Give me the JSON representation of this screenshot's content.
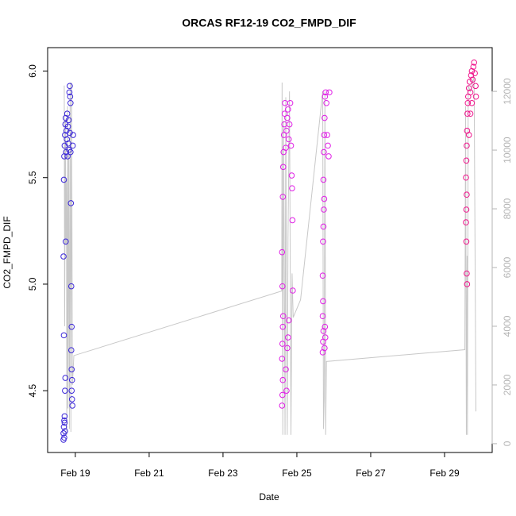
{
  "chart_data": {
    "type": "scatter",
    "title": "ORCAS RF12-19 CO2_FMPD_DIF",
    "x_label": "Date",
    "y_label": "CO2_FMPD_DIF",
    "xlim": [
      18.25,
      30.29
    ],
    "xticks": [
      {
        "value": 19,
        "label": "Feb 19"
      },
      {
        "value": 21,
        "label": "Feb 21"
      },
      {
        "value": 23,
        "label": "Feb 23"
      },
      {
        "value": 25,
        "label": "Feb 25"
      },
      {
        "value": 27,
        "label": "Feb 27"
      },
      {
        "value": 29,
        "label": "Feb 29"
      }
    ],
    "ylim": [
      4.21,
      6.11
    ],
    "yticks": [
      4.5,
      {
        "value": 5,
        "label": "5.0"
      },
      5.5,
      {
        "value": 6,
        "label": "6.0"
      }
    ],
    "y2lim": [
      -300,
      13490
    ],
    "y2ticks": [
      0,
      2000,
      4000,
      6000,
      8000,
      10000,
      12000
    ],
    "y2color": "#b4b4b4",
    "series": [
      {
        "type": "line",
        "axis": "y2",
        "color": "#c8c8c8",
        "x": [
          18.7,
          18.71,
          18.73,
          18.74,
          18.76,
          18.77,
          18.79,
          18.8,
          18.82,
          18.84,
          18.86,
          18.88,
          18.9,
          18.92,
          18.96,
          24.59,
          24.6,
          24.62,
          24.64,
          24.66,
          24.68,
          24.7,
          24.72,
          24.74,
          24.76,
          24.8,
          24.84,
          24.87,
          24.9,
          25.1,
          25.7,
          25.72,
          25.74,
          25.76,
          25.78,
          25.8,
          29.55,
          29.57,
          29.59,
          29.61,
          29.62,
          29.64,
          29.7,
          29.8,
          29.85
        ],
        "values": [
          12200,
          4000,
          11000,
          6800,
          9000,
          300,
          11500,
          1200,
          10000,
          500,
          12300,
          400,
          12300,
          2000,
          3000,
          5200,
          12300,
          300,
          11000,
          6000,
          300,
          11800,
          4500,
          300,
          7000,
          12000,
          300,
          5800,
          4300,
          4900,
          12000,
          500,
          1500,
          12000,
          300,
          2800,
          3200,
          11500,
          300,
          6400,
          300,
          12200,
          12000,
          12500,
          1100
        ]
      },
      {
        "type": "scatter",
        "color": "#3c28d8",
        "x": [
          18.68,
          18.68,
          18.69,
          18.7,
          18.71,
          18.7,
          18.72,
          18.71,
          18.69,
          18.68,
          18.69,
          18.7,
          18.71,
          18.72,
          18.73,
          18.74,
          18.75,
          18.76,
          18.77,
          18.78,
          18.79,
          18.8,
          18.81,
          18.82,
          18.83,
          18.84,
          18.85,
          18.86,
          18.87,
          18.85,
          18.87,
          18.88,
          18.89,
          18.9,
          18.89,
          18.9,
          18.91,
          18.9,
          18.91,
          18.92,
          18.93,
          18.94,
          18.72,
          18.73,
          18.74
        ],
        "values": [
          4.27,
          4.3,
          4.33,
          4.36,
          4.38,
          4.28,
          4.31,
          4.35,
          4.76,
          5.13,
          5.49,
          5.6,
          5.65,
          5.7,
          5.75,
          5.78,
          5.62,
          5.72,
          5.68,
          5.8,
          5.6,
          5.74,
          5.66,
          5.77,
          5.63,
          5.9,
          5.93,
          5.88,
          5.85,
          5.71,
          5.62,
          5.38,
          4.99,
          4.8,
          4.69,
          4.6,
          4.55,
          4.5,
          4.46,
          4.43,
          5.65,
          5.7,
          4.5,
          4.56,
          5.2
        ]
      },
      {
        "type": "scatter",
        "color": "#e01ee6",
        "x": [
          24.6,
          24.61,
          24.62,
          24.6,
          24.61,
          24.62,
          24.63,
          24.61,
          24.6,
          24.62,
          24.63,
          24.64,
          24.65,
          24.66,
          24.67,
          24.68,
          24.7,
          24.72,
          24.74,
          24.76,
          24.78,
          24.8,
          24.82,
          24.84,
          24.86,
          24.87,
          24.88,
          24.89,
          24.7,
          24.72,
          24.74,
          24.76,
          24.78,
          25.7,
          25.71,
          25.72,
          25.7,
          25.71,
          25.7,
          25.71,
          25.72,
          25.73,
          25.74,
          25.72,
          25.73,
          25.74,
          25.75,
          25.76,
          25.78,
          25.8,
          25.82,
          25.84,
          25.86,
          25.88,
          25.75,
          25.77,
          25.76
        ],
        "values": [
          4.43,
          4.48,
          4.55,
          4.65,
          4.72,
          4.8,
          4.85,
          4.99,
          5.15,
          5.41,
          5.55,
          5.62,
          5.7,
          5.75,
          5.8,
          5.85,
          5.64,
          5.72,
          5.78,
          5.82,
          5.68,
          5.75,
          5.85,
          5.65,
          5.51,
          5.45,
          5.3,
          4.97,
          4.6,
          4.5,
          4.7,
          4.75,
          4.83,
          4.68,
          4.73,
          4.78,
          4.85,
          4.92,
          5.04,
          5.2,
          5.27,
          5.35,
          5.4,
          5.49,
          5.62,
          5.7,
          5.78,
          5.88,
          5.9,
          5.85,
          5.7,
          5.65,
          5.6,
          5.9,
          4.7,
          4.75,
          4.8
        ]
      },
      {
        "type": "scatter",
        "color": "#f0148c",
        "x": [
          29.58,
          29.59,
          29.6,
          29.58,
          29.59,
          29.6,
          29.61,
          29.62,
          29.63,
          29.64,
          29.66,
          29.68,
          29.7,
          29.72,
          29.74,
          29.76,
          29.78,
          29.8,
          29.82,
          29.84,
          29.85,
          29.66,
          29.7,
          29.74,
          29.59,
          29.6,
          29.61
        ],
        "values": [
          5.29,
          5.35,
          5.42,
          5.5,
          5.58,
          5.65,
          5.72,
          5.8,
          5.85,
          5.88,
          5.92,
          5.95,
          5.9,
          5.98,
          6.0,
          5.96,
          6.02,
          6.04,
          5.99,
          5.93,
          5.88,
          5.7,
          5.8,
          5.85,
          5.2,
          5.05,
          5.0
        ]
      }
    ]
  }
}
